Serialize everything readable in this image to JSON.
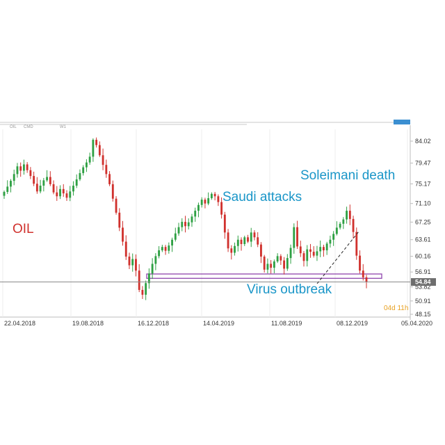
{
  "header": {
    "symbol": "OIL",
    "market": "CMD",
    "timeframe": "W1"
  },
  "chart_data": {
    "type": "candlestick",
    "title": "OIL",
    "x_tick_labels": [
      "22.04.2018",
      "19.08.2018",
      "16.12.2018",
      "14.04.2019",
      "11.08.2019",
      "08.12.2019",
      "05.04.2020"
    ],
    "y_tick_labels": [
      "84.02",
      "79.47",
      "75.17",
      "71.10",
      "67.25",
      "63.61",
      "60.16",
      "56.91",
      "53.82",
      "50.91",
      "48.15"
    ],
    "ylim": [
      48.15,
      86.0
    ],
    "current_price": "54.84",
    "timer": "04d 11h",
    "support_zone": [
      55.6,
      56.5
    ],
    "annotations": [
      "Soleimani death",
      "Saudi attacks",
      "Virus outbreak"
    ],
    "colors": {
      "up": "#2ea043",
      "down": "#d0312d",
      "support": "#8e44ad",
      "annotation": "#1a96c8",
      "trendline": "#222222"
    },
    "closes": [
      73.5,
      74.6,
      75.8,
      77.2,
      78.8,
      77.9,
      79.2,
      78.0,
      76.8,
      75.2,
      73.6,
      74.8,
      75.9,
      76.6,
      75.1,
      73.4,
      72.6,
      74.1,
      73.2,
      72.3,
      73.6,
      74.8,
      76.1,
      77.4,
      78.6,
      79.6,
      80.8,
      84.3,
      83.2,
      81.1,
      79.1,
      77.2,
      75.1,
      72.1,
      69.2,
      66.1,
      63.2,
      60.1,
      58.3,
      59.6,
      57.2,
      53.2,
      52.2,
      54.6,
      56.6,
      58.6,
      60.2,
      61.4,
      62.1,
      61.3,
      62.4,
      63.6,
      64.9,
      66.2,
      67.3,
      66.4,
      67.2,
      68.4,
      69.6,
      70.8,
      71.9,
      71.1,
      72.2,
      73.1,
      72.6,
      71.4,
      68.8,
      65.1,
      61.8,
      60.9,
      62.3,
      63.6,
      62.7,
      64.1,
      63.2,
      65.1,
      64.1,
      62.6,
      60.1,
      57.4,
      58.6,
      57.8,
      59.1,
      60.2,
      59.3,
      57.6,
      59.8,
      61.9,
      66.2,
      62.2,
      60.8,
      59.2,
      61.6,
      61.1,
      60.3,
      61.2,
      62.1,
      61.4,
      62.8,
      63.6,
      64.8,
      66.1,
      66.9,
      67.8,
      69.6,
      67.9,
      65.2,
      60.3,
      57.2,
      55.8,
      54.84
    ]
  }
}
